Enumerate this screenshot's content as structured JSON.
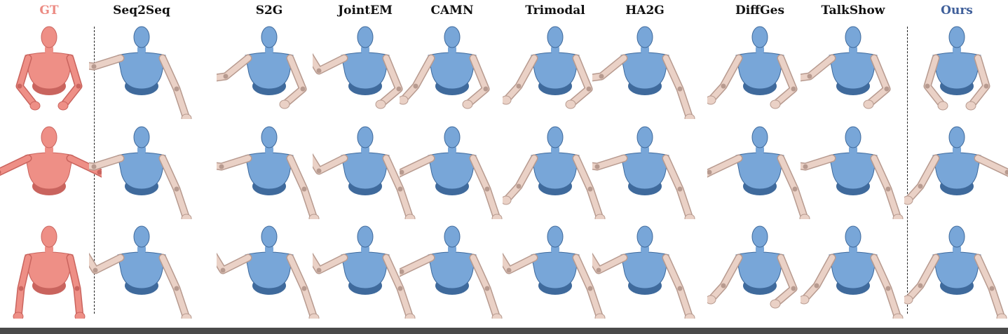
{
  "columns": [
    {
      "label": "GT",
      "kind": "gt"
    },
    {
      "label": "Seq2Seq",
      "kind": "method"
    },
    {
      "label": "S2G",
      "kind": "method"
    },
    {
      "label": "JointEM",
      "kind": "method"
    },
    {
      "label": "CAMN",
      "kind": "method"
    },
    {
      "label": "Trimodal",
      "kind": "method"
    },
    {
      "label": "HA2G",
      "kind": "method"
    },
    {
      "label": "DiffGes",
      "kind": "method"
    },
    {
      "label": "TalkShow",
      "kind": "method"
    },
    {
      "label": "Ours",
      "kind": "ours"
    }
  ],
  "rows": 3,
  "colors": {
    "gt_body": "#ee8f86",
    "gt_shade": "#c9645e",
    "torso": "#78a6d8",
    "torso_shade": "#3f6a9c",
    "arm": "#ead1c6",
    "arm_shade": "#b79a8f",
    "gt_label": "#ec8a82",
    "ours_label": "#3f5f9a"
  },
  "poses": [
    [
      {
        "l": "fold",
        "r": "fold"
      },
      {
        "l": "out",
        "r": "down"
      },
      {
        "l": "mid",
        "r": "bend"
      },
      {
        "l": "up",
        "r": "bend"
      },
      {
        "l": "low",
        "r": "bend"
      },
      {
        "l": "low",
        "r": "bend"
      },
      {
        "l": "mid",
        "r": "down"
      },
      {
        "l": "low",
        "r": "bend"
      },
      {
        "l": "mid",
        "r": "bend"
      },
      {
        "l": "fold",
        "r": "fold"
      }
    ],
    [
      {
        "l": "wide",
        "r": "wide"
      },
      {
        "l": "out",
        "r": "down"
      },
      {
        "l": "out",
        "r": "down"
      },
      {
        "l": "up",
        "r": "down"
      },
      {
        "l": "wide",
        "r": "down"
      },
      {
        "l": "low",
        "r": "down"
      },
      {
        "l": "out",
        "r": "down"
      },
      {
        "l": "wide",
        "r": "down"
      },
      {
        "l": "out",
        "r": "down"
      },
      {
        "l": "low",
        "r": "wide"
      }
    ],
    [
      {
        "l": "hang",
        "r": "hang"
      },
      {
        "l": "up",
        "r": "down"
      },
      {
        "l": "up",
        "r": "down"
      },
      {
        "l": "up",
        "r": "down"
      },
      {
        "l": "wide",
        "r": "down"
      },
      {
        "l": "up",
        "r": "down"
      },
      {
        "l": "up",
        "r": "down"
      },
      {
        "l": "low",
        "r": "bend"
      },
      {
        "l": "low",
        "r": "down"
      },
      {
        "l": "low",
        "r": "down"
      }
    ]
  ]
}
